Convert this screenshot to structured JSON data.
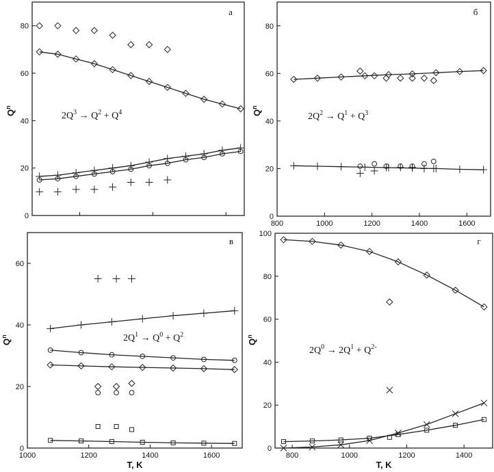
{
  "chart_data": [
    {
      "id": "a",
      "type": "scatter",
      "panel_label": "a",
      "equation": {
        "base": [
          "2Q",
          " → Q",
          " + Q"
        ],
        "sup": [
          "3",
          "2",
          "4"
        ]
      },
      "ylabel": {
        "base": "Q",
        "sup": "n"
      },
      "xlabel": "",
      "xlim": [
        540,
        1700
      ],
      "ylim": [
        0,
        90
      ],
      "xticks": [
        800,
        1200,
        1600
      ],
      "yticks": [
        0,
        20,
        40,
        60,
        80
      ],
      "xtick_labels": [
        "",
        "",
        ""
      ],
      "ytick_labels": [
        "0",
        "20",
        "40",
        "60",
        "80"
      ],
      "grid": false,
      "series": [
        {
          "marker": "diamond",
          "line": false,
          "x": [
            580,
            680,
            780,
            880,
            980,
            1080,
            1180,
            1280
          ],
          "y": [
            80,
            80,
            78,
            78,
            76,
            72,
            72,
            70
          ]
        },
        {
          "marker": "diamond",
          "line": true,
          "x": [
            580,
            680,
            780,
            880,
            980,
            1080,
            1180,
            1280,
            1380,
            1480,
            1580,
            1680
          ],
          "y": [
            69,
            68,
            66,
            64,
            61.5,
            59,
            56.5,
            54,
            51.5,
            49,
            47,
            45
          ]
        },
        {
          "marker": "plus",
          "line": true,
          "x": [
            580,
            680,
            780,
            880,
            980,
            1080,
            1180,
            1280,
            1380,
            1480,
            1580,
            1680
          ],
          "y": [
            16.5,
            17,
            18,
            19,
            20,
            21,
            22.5,
            24,
            25,
            26,
            27.5,
            28.5
          ]
        },
        {
          "marker": "circle",
          "line": true,
          "x": [
            580,
            680,
            780,
            880,
            980,
            1080,
            1180,
            1280,
            1380,
            1480,
            1580,
            1680
          ],
          "y": [
            15,
            15.5,
            16.5,
            17.5,
            18.5,
            19.5,
            21,
            22,
            23.5,
            24.5,
            26,
            27
          ]
        },
        {
          "marker": "plus",
          "line": false,
          "x": [
            580,
            680,
            780,
            880,
            980,
            1080,
            1180,
            1280
          ],
          "y": [
            10,
            10,
            11,
            11,
            12,
            14,
            14,
            15
          ]
        }
      ]
    },
    {
      "id": "b",
      "type": "scatter",
      "panel_label": "б",
      "equation": {
        "base": [
          "2Q",
          " → Q",
          " + Q"
        ],
        "sup": [
          "2",
          "1",
          "3"
        ]
      },
      "ylabel": {
        "base": "Q",
        "sup": "n"
      },
      "xlabel": "",
      "xlim": [
        800,
        1700
      ],
      "ylim": [
        0,
        90
      ],
      "xticks": [
        800,
        1000,
        1200,
        1400,
        1600
      ],
      "yticks": [
        0,
        20,
        40,
        60,
        80
      ],
      "xtick_labels": [
        "800",
        "1000",
        "1200",
        "1400",
        "1600"
      ],
      "ytick_labels": [
        "0",
        "20",
        "40",
        "60",
        "80"
      ],
      "grid": false,
      "series": [
        {
          "marker": "diamond",
          "line": true,
          "x": [
            870,
            970,
            1070,
            1170,
            1270,
            1370,
            1470,
            1570,
            1670
          ],
          "y": [
            57.5,
            58,
            58.5,
            59,
            59.5,
            59.8,
            60.3,
            60.8,
            61.2
          ]
        },
        {
          "marker": "diamond",
          "line": false,
          "x": [
            1150,
            1210,
            1260,
            1320,
            1370,
            1420,
            1460
          ],
          "y": [
            61,
            59,
            58,
            58,
            58,
            58,
            57
          ]
        },
        {
          "marker": "plus",
          "line": true,
          "x": [
            870,
            970,
            1070,
            1170,
            1270,
            1370,
            1470,
            1570,
            1670
          ],
          "y": [
            21.2,
            21,
            20.8,
            20.6,
            20.4,
            20.2,
            20,
            19.7,
            19.5
          ]
        },
        {
          "marker": "circle",
          "line": false,
          "x": [
            1150,
            1210,
            1260,
            1320,
            1370,
            1420,
            1460
          ],
          "y": [
            21,
            22,
            21,
            21,
            21,
            22,
            23
          ]
        },
        {
          "marker": "plus",
          "line": false,
          "x": [
            1150,
            1210,
            1260,
            1320,
            1370,
            1420,
            1460
          ],
          "y": [
            18,
            19,
            20.5,
            20.5,
            20.5,
            20,
            20
          ]
        }
      ]
    },
    {
      "id": "c",
      "type": "scatter",
      "panel_label": "в",
      "equation": {
        "base": [
          "2Q",
          " → Q",
          " + Q"
        ],
        "sup": [
          "1",
          "0",
          "2"
        ]
      },
      "ylabel": {
        "base": "Q",
        "sup": "n"
      },
      "xlabel": "T, K",
      "xlim": [
        1000,
        1700
      ],
      "ylim": [
        0,
        70
      ],
      "xticks": [
        1000,
        1200,
        1400,
        1600
      ],
      "yticks": [
        0,
        20,
        40,
        60
      ],
      "xtick_labels": [
        "1000",
        "1200",
        "1400",
        "1600"
      ],
      "ytick_labels": [
        "0",
        "20",
        "40",
        "60"
      ],
      "grid": false,
      "series": [
        {
          "marker": "plus",
          "line": false,
          "x": [
            1230,
            1290,
            1340
          ],
          "y": [
            55,
            55,
            55
          ]
        },
        {
          "marker": "plus",
          "line": true,
          "x": [
            1075,
            1175,
            1275,
            1375,
            1475,
            1575,
            1675
          ],
          "y": [
            38.8,
            40,
            41,
            42,
            43,
            43.8,
            44.6
          ]
        },
        {
          "marker": "circle",
          "line": true,
          "x": [
            1075,
            1175,
            1275,
            1375,
            1475,
            1575,
            1675
          ],
          "y": [
            31.8,
            31,
            30.3,
            29.8,
            29.3,
            28.8,
            28.5
          ]
        },
        {
          "marker": "diamond",
          "line": true,
          "x": [
            1075,
            1175,
            1275,
            1375,
            1475,
            1575,
            1675
          ],
          "y": [
            27,
            26.7,
            26.4,
            26.2,
            26,
            25.8,
            25.5
          ]
        },
        {
          "marker": "diamond",
          "line": false,
          "x": [
            1230,
            1290,
            1340
          ],
          "y": [
            20,
            20,
            21
          ]
        },
        {
          "marker": "circle",
          "line": false,
          "x": [
            1230,
            1290,
            1340
          ],
          "y": [
            18,
            18,
            18
          ]
        },
        {
          "marker": "square",
          "line": false,
          "x": [
            1230,
            1290,
            1340
          ],
          "y": [
            7,
            7,
            6
          ]
        },
        {
          "marker": "square",
          "line": true,
          "x": [
            1075,
            1175,
            1275,
            1375,
            1475,
            1575,
            1675
          ],
          "y": [
            2.5,
            2.3,
            2.1,
            1.9,
            1.7,
            1.6,
            1.5
          ]
        }
      ]
    },
    {
      "id": "d",
      "type": "scatter",
      "panel_label": "г",
      "equation": {
        "base": [
          "2Q",
          " → 2Q",
          " + Q"
        ],
        "sup": [
          "0",
          "1",
          "2-"
        ]
      },
      "ylabel": {
        "base": "Q",
        "sup": "n"
      },
      "xlabel": "T, K",
      "xlim": [
        740,
        1500
      ],
      "ylim": [
        0,
        100
      ],
      "xticks": [
        800,
        1000,
        1200,
        1400
      ],
      "yticks": [
        0,
        20,
        40,
        60,
        80,
        100
      ],
      "xtick_labels": [
        "800",
        "1000",
        "1200",
        "1400"
      ],
      "ytick_labels": [
        "0",
        "20",
        "40",
        "60",
        "80",
        "100"
      ],
      "grid": false,
      "series": [
        {
          "marker": "diamond",
          "line": true,
          "x": [
            770,
            870,
            970,
            1070,
            1170,
            1270,
            1370,
            1470
          ],
          "y": [
            97,
            96.2,
            94.5,
            91.5,
            86.7,
            80.5,
            73.5,
            65.7
          ]
        },
        {
          "marker": "diamond",
          "line": false,
          "x": [
            1140
          ],
          "y": [
            68
          ]
        },
        {
          "marker": "cross",
          "line": false,
          "x": [
            1140
          ],
          "y": [
            27
          ]
        },
        {
          "marker": "cross",
          "line": true,
          "x": [
            770,
            870,
            970,
            1070,
            1170,
            1270,
            1370,
            1470
          ],
          "y": [
            0,
            0.5,
            1.5,
            3.5,
            7,
            11,
            16,
            21
          ]
        },
        {
          "marker": "square",
          "line": true,
          "x": [
            770,
            870,
            970,
            1070,
            1170,
            1270,
            1370,
            1470
          ],
          "y": [
            3,
            3.3,
            3.8,
            4.6,
            6.3,
            8.3,
            10.6,
            13.3
          ]
        },
        {
          "marker": "square",
          "line": false,
          "x": [
            1140
          ],
          "y": [
            5
          ]
        }
      ]
    }
  ]
}
